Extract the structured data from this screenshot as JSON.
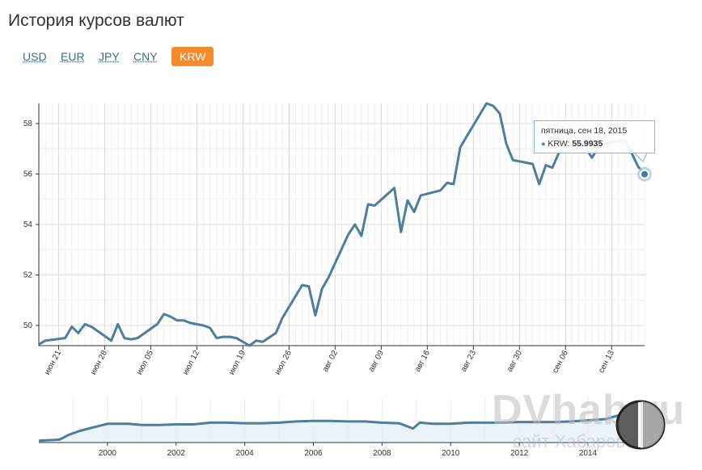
{
  "title": "История курсов валют",
  "tabs": [
    {
      "label": "USD",
      "active": false
    },
    {
      "label": "EUR",
      "active": false
    },
    {
      "label": "JPY",
      "active": false
    },
    {
      "label": "CNY",
      "active": false
    },
    {
      "label": "KRW",
      "active": true
    }
  ],
  "colors": {
    "line": "#4f7d9e",
    "active_tab": "#f58a2d",
    "tab_link": "#3d6f8f",
    "grid": "#e3e3e3",
    "tooltip_border": "#7fbcd6"
  },
  "tooltip": {
    "date": "пятница, сен 18, 2015",
    "series": "KRW",
    "value": "55.9935"
  },
  "watermark": {
    "text": "DVhab.ru",
    "subtext": "сайт Хабаровска"
  },
  "chart_data": [
    {
      "type": "line",
      "ylim": [
        49.2,
        58.8
      ],
      "xlim": [
        "2015-06-18",
        "2015-09-18"
      ],
      "yticks": [
        50,
        52,
        54,
        56,
        58
      ],
      "xticks": [
        {
          "date": "2015-06-21",
          "label": "июн 21"
        },
        {
          "date": "2015-06-28",
          "label": "июн 28"
        },
        {
          "date": "2015-07-05",
          "label": "июл 05"
        },
        {
          "date": "2015-07-12",
          "label": "июл 12"
        },
        {
          "date": "2015-07-19",
          "label": "июл 19"
        },
        {
          "date": "2015-07-26",
          "label": "июл 26"
        },
        {
          "date": "2015-08-02",
          "label": "авг 02"
        },
        {
          "date": "2015-08-09",
          "label": "авг 09"
        },
        {
          "date": "2015-08-16",
          "label": "авг 16"
        },
        {
          "date": "2015-08-23",
          "label": "авг 23"
        },
        {
          "date": "2015-08-30",
          "label": "авг 30"
        },
        {
          "date": "2015-09-06",
          "label": "сен 06"
        },
        {
          "date": "2015-09-13",
          "label": "сен 13"
        }
      ],
      "grid": true,
      "series": [
        {
          "x": [
            "2015-06-18",
            "2015-06-19",
            "2015-06-22",
            "2015-06-23",
            "2015-06-24",
            "2015-06-25",
            "2015-06-26",
            "2015-06-29",
            "2015-06-30",
            "2015-07-01",
            "2015-07-02",
            "2015-07-03",
            "2015-07-06",
            "2015-07-07",
            "2015-07-08",
            "2015-07-09",
            "2015-07-10",
            "2015-07-11",
            "2015-07-13",
            "2015-07-14",
            "2015-07-15",
            "2015-07-16",
            "2015-07-17",
            "2015-07-18",
            "2015-07-20",
            "2015-07-21",
            "2015-07-22",
            "2015-07-24",
            "2015-07-25",
            "2015-07-28",
            "2015-07-29",
            "2015-07-30",
            "2015-07-31",
            "2015-08-01",
            "2015-08-04",
            "2015-08-05",
            "2015-08-06",
            "2015-08-07",
            "2015-08-08",
            "2015-08-11",
            "2015-08-12",
            "2015-08-13",
            "2015-08-14",
            "2015-08-15",
            "2015-08-18",
            "2015-08-19",
            "2015-08-20",
            "2015-08-21",
            "2015-08-22",
            "2015-08-25",
            "2015-08-26",
            "2015-08-27",
            "2015-08-28",
            "2015-08-29",
            "2015-09-01",
            "2015-09-02",
            "2015-09-03",
            "2015-09-04",
            "2015-09-05",
            "2015-09-08",
            "2015-09-09",
            "2015-09-10",
            "2015-09-11",
            "2015-09-12",
            "2015-09-15",
            "2015-09-16",
            "2015-09-17",
            "2015-09-18"
          ],
          "y": [
            49.25,
            49.4,
            49.5,
            49.95,
            49.7,
            50.05,
            49.95,
            49.4,
            50.05,
            49.5,
            49.45,
            49.5,
            50.05,
            50.45,
            50.35,
            50.2,
            50.2,
            50.1,
            50.0,
            49.9,
            49.5,
            49.55,
            49.55,
            49.5,
            49.2,
            49.4,
            49.35,
            49.7,
            50.3,
            51.6,
            51.55,
            50.4,
            51.45,
            51.9,
            53.6,
            54.0,
            53.55,
            54.8,
            54.75,
            55.45,
            53.7,
            54.95,
            54.5,
            55.15,
            55.35,
            55.65,
            55.6,
            57.05,
            57.5,
            58.8,
            58.7,
            58.4,
            57.2,
            56.55,
            56.4,
            55.6,
            56.35,
            56.25,
            56.85,
            57.0,
            57.05,
            56.65,
            57.05,
            57.2,
            57.35,
            56.85,
            56.3,
            55.9935
          ]
        }
      ]
    },
    {
      "type": "area",
      "ylim": [
        0,
        80
      ],
      "xticks": [
        "2000",
        "2002",
        "2004",
        "2006",
        "2008",
        "2010",
        "2012",
        "2014"
      ],
      "series": [
        {
          "x": [
            1998.0,
            1998.6,
            1998.9,
            1999.2,
            1999.6,
            2000.0,
            2000.6,
            2001.0,
            2001.5,
            2002.0,
            2002.5,
            2003.0,
            2003.5,
            2004.0,
            2004.5,
            2005.0,
            2005.5,
            2006.0,
            2006.5,
            2007.0,
            2007.5,
            2008.0,
            2008.5,
            2008.9,
            2009.1,
            2009.5,
            2010.0,
            2010.5,
            2011.0,
            2011.5,
            2012.0,
            2012.5,
            2013.0,
            2013.5,
            2014.0,
            2014.5,
            2015.0,
            2015.3,
            2015.6,
            2015.72
          ],
          "y": [
            3,
            5,
            14,
            20,
            26,
            32,
            32,
            30,
            30,
            31,
            31,
            34,
            34,
            33,
            33,
            34,
            36,
            37,
            37,
            36,
            36,
            34,
            33,
            24,
            34,
            32,
            32,
            34,
            34,
            34,
            35,
            35,
            35,
            36,
            38,
            40,
            48,
            55,
            58,
            56
          ]
        }
      ]
    }
  ]
}
